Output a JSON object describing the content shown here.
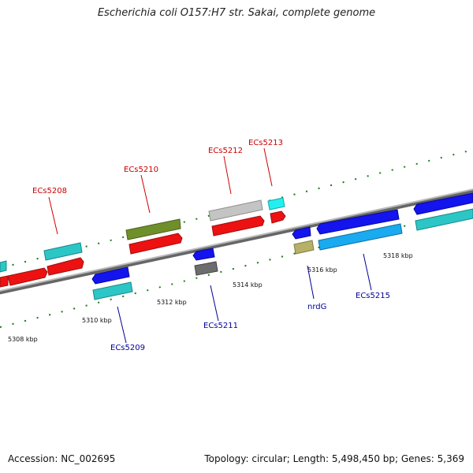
{
  "title": "Escherichia coli O157:H7 str. Sakai, complete genome",
  "footer": {
    "accession": "Accession: NC_002695",
    "topology": "Topology: circular; Length: 5,498,450 bp; Genes: 5,369"
  },
  "colors": {
    "forward_label": "#cc0000",
    "reverse_label": "#000099",
    "backbone": "#8a8a8a",
    "tick": "#1a7a1a"
  },
  "scale_labels": [
    "5308 kbp",
    "5310 kbp",
    "5312 kbp",
    "5314 kbp",
    "5316 kbp",
    "5318 kbp"
  ],
  "gene_labels": {
    "forward": [
      "ECs5208",
      "ECs5210",
      "ECs5212",
      "ECs5213"
    ],
    "reverse": [
      "ECs5209",
      "ECs5211",
      "nrdG",
      "ECs5215"
    ]
  }
}
